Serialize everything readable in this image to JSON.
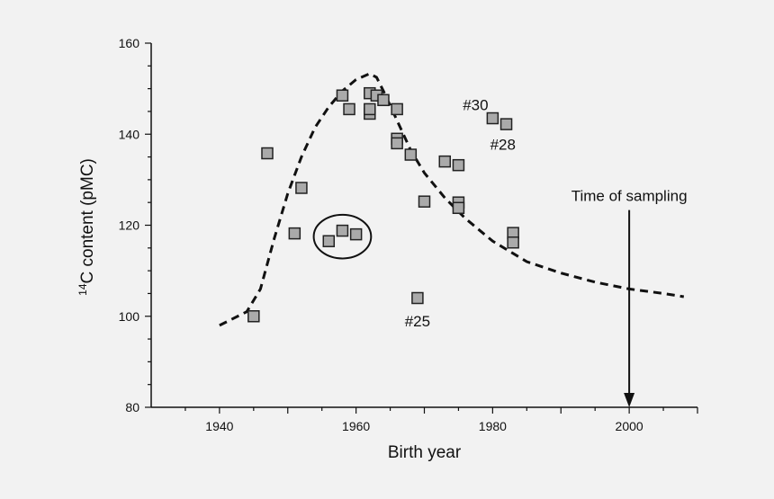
{
  "chart_data": {
    "type": "scatter",
    "xlabel": "Birth year",
    "ylabel": {
      "superscript": "14",
      "text": "C content (pMC)"
    },
    "xlim": [
      1930,
      2010
    ],
    "ylim": [
      80,
      160
    ],
    "xticks": [
      1940,
      1960,
      1980,
      2000
    ],
    "yticks": [
      80,
      100,
      120,
      140,
      160
    ],
    "grid": false,
    "series": [
      {
        "kind": "points",
        "marker": "square",
        "points": [
          [
            1945,
            100
          ],
          [
            1947,
            135.8
          ],
          [
            1951,
            118.2
          ],
          [
            1952,
            128.2
          ],
          [
            1956,
            116.5
          ],
          [
            1958,
            118.8
          ],
          [
            1958,
            148.5
          ],
          [
            1959,
            145.5
          ],
          [
            1960,
            118
          ],
          [
            1962,
            149
          ],
          [
            1962,
            144.5
          ],
          [
            1962,
            145.5
          ],
          [
            1963,
            148.5
          ],
          [
            1964,
            147.5
          ],
          [
            1966,
            145.5
          ],
          [
            1966,
            139
          ],
          [
            1966,
            138
          ],
          [
            1968,
            135.5
          ],
          [
            1969,
            104
          ],
          [
            1970,
            125.2
          ],
          [
            1973,
            134
          ],
          [
            1975,
            133.2
          ],
          [
            1975,
            125
          ],
          [
            1975,
            123.8
          ],
          [
            1980,
            143.5
          ],
          [
            1982,
            142.2
          ],
          [
            1983,
            118.3
          ],
          [
            1983,
            116.2
          ]
        ]
      },
      {
        "kind": "curve",
        "style": "dashed",
        "points": [
          [
            1940,
            98
          ],
          [
            1944,
            101
          ],
          [
            1946,
            106
          ],
          [
            1948,
            117
          ],
          [
            1950,
            127
          ],
          [
            1952,
            135
          ],
          [
            1954,
            141.5
          ],
          [
            1956,
            146
          ],
          [
            1958,
            149.5
          ],
          [
            1960,
            152
          ],
          [
            1962,
            153.3
          ],
          [
            1963,
            152.5
          ],
          [
            1964,
            149.5
          ],
          [
            1966,
            143
          ],
          [
            1968,
            136.5
          ],
          [
            1970,
            131.5
          ],
          [
            1973,
            126
          ],
          [
            1976,
            121.5
          ],
          [
            1980,
            116.5
          ],
          [
            1985,
            112
          ],
          [
            1990,
            109.5
          ],
          [
            1995,
            107.5
          ],
          [
            2000,
            106
          ],
          [
            2005,
            105
          ],
          [
            2008,
            104.3
          ]
        ]
      }
    ],
    "annotations": [
      {
        "text": "#30",
        "x": 1977.5,
        "y": 146.5
      },
      {
        "text": "#28",
        "x": 1981.5,
        "y": 137.8
      },
      {
        "text": "#25",
        "x": 1969,
        "y": 99
      },
      {
        "text": "Time of sampling",
        "x": 2000,
        "y": 126.5,
        "arrow_to": 80
      }
    ],
    "highlight": {
      "shape": "ellipse",
      "cx": 1958,
      "cy": 117.5,
      "rx": 4.2,
      "ry": 4.8
    }
  }
}
